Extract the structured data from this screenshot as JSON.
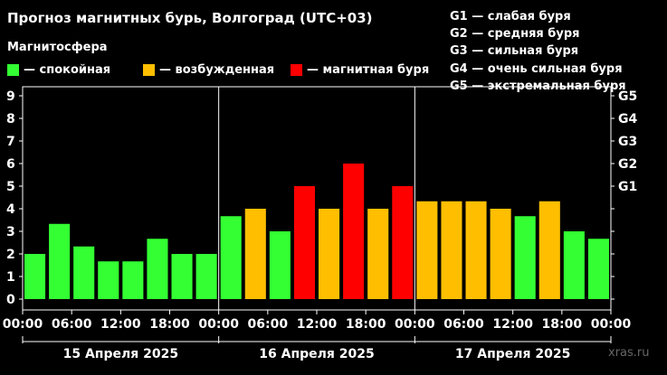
{
  "header": {
    "title": "Прогноз магнитных бурь, Волгоград (UTC+03)",
    "subtitle": "Магнитосфера"
  },
  "legend": [
    {
      "label": "— спокойная",
      "color": "#33ff33"
    },
    {
      "label": "— возбужденная",
      "color": "#ffbf00"
    },
    {
      "label": "— магнитная буря",
      "color": "#ff0000"
    }
  ],
  "g_scale": [
    "G1 — слабая буря",
    "G2 — средняя буря",
    "G3 — сильная буря",
    "G4 — очень сильная буря",
    "G5 — экстремальная буря"
  ],
  "watermark": "xras.ru",
  "chart_data": {
    "type": "bar",
    "ylim": [
      0,
      9
    ],
    "y_ticks": [
      "0",
      "1",
      "2",
      "3",
      "4",
      "5",
      "6",
      "7",
      "8",
      "9"
    ],
    "right_ticks": [
      {
        "value": 5,
        "label": "G1"
      },
      {
        "value": 6,
        "label": "G2"
      },
      {
        "value": 7,
        "label": "G3"
      },
      {
        "value": 8,
        "label": "G4"
      },
      {
        "value": 9,
        "label": "G5"
      }
    ],
    "x_tick_labels": [
      "00:00",
      "06:00",
      "12:00",
      "18:00",
      "00:00",
      "06:00",
      "12:00",
      "18:00",
      "00:00",
      "06:00",
      "12:00",
      "18:00",
      "00:00"
    ],
    "days": [
      "15 Апреля 2025",
      "16 Апреля 2025",
      "17 Апреля 2025"
    ],
    "interval_hours": 3,
    "values": [
      2,
      3.33,
      2.33,
      1.67,
      1.67,
      2.67,
      2,
      2,
      3.67,
      4,
      3,
      5,
      4,
      6,
      4,
      5,
      4.33,
      4.33,
      4.33,
      4,
      3.67,
      4.33,
      3,
      2.67
    ],
    "colors": {
      "quiet": "#33ff33",
      "active": "#ffbf00",
      "storm": "#ff0000"
    },
    "grid": false
  }
}
